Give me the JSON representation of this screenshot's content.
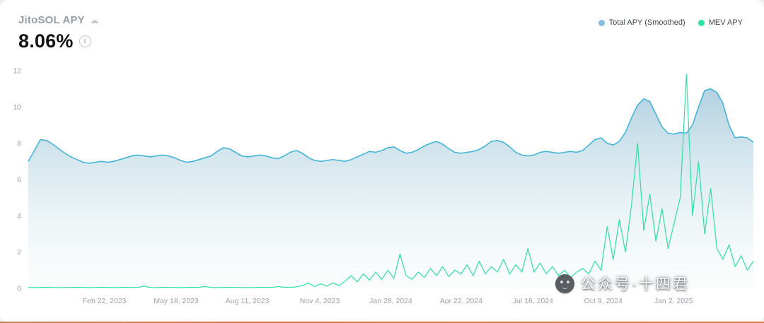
{
  "header": {
    "title": "JitoSOL APY",
    "value": "8.06%"
  },
  "legend": {
    "items": [
      {
        "label": "Total APY (Smoothed)",
        "color": "#84bde4"
      },
      {
        "label": "MEV APY",
        "color": "#2ee0a4"
      }
    ]
  },
  "watermark": {
    "text": "公众号·十四君"
  },
  "chart_data": {
    "type": "area",
    "title": "JitoSOL APY",
    "grid": false,
    "legend_position": "top-right",
    "ylim": [
      0,
      12
    ],
    "yticks": [
      0,
      2,
      4,
      6,
      8,
      10,
      12
    ],
    "xticks": [
      {
        "label": "Feb 22, 2023",
        "pos": 0.105
      },
      {
        "label": "May 18, 2023",
        "pos": 0.204
      },
      {
        "label": "Aug 11, 2023",
        "pos": 0.302
      },
      {
        "label": "Nov 4, 2023",
        "pos": 0.402
      },
      {
        "label": "Jan 28, 2024",
        "pos": 0.5
      },
      {
        "label": "Apr 22, 2024",
        "pos": 0.597
      },
      {
        "label": "Jul 16, 2024",
        "pos": 0.696
      },
      {
        "label": "Oct 9, 2024",
        "pos": 0.793
      },
      {
        "label": "Jan 2, 2025",
        "pos": 0.89
      }
    ],
    "series": [
      {
        "name": "Total APY (Smoothed)",
        "type": "area",
        "color": "#45b4d9",
        "fill_top": "#a4c9dc",
        "fill_bottom": "#f0f8f5",
        "values": [
          7.0,
          7.6,
          8.2,
          8.15,
          7.95,
          7.7,
          7.45,
          7.25,
          7.1,
          6.95,
          6.9,
          6.95,
          7.0,
          6.95,
          7.0,
          7.1,
          7.2,
          7.3,
          7.35,
          7.3,
          7.25,
          7.3,
          7.35,
          7.3,
          7.2,
          7.05,
          6.95,
          7.0,
          7.1,
          7.2,
          7.3,
          7.55,
          7.75,
          7.7,
          7.5,
          7.3,
          7.25,
          7.3,
          7.35,
          7.3,
          7.2,
          7.15,
          7.3,
          7.5,
          7.6,
          7.45,
          7.2,
          7.05,
          7.0,
          7.05,
          7.1,
          7.05,
          7.0,
          7.1,
          7.25,
          7.4,
          7.55,
          7.5,
          7.6,
          7.75,
          7.8,
          7.6,
          7.45,
          7.5,
          7.65,
          7.85,
          8.0,
          8.1,
          7.95,
          7.7,
          7.5,
          7.45,
          7.5,
          7.55,
          7.65,
          7.85,
          8.1,
          8.15,
          8.05,
          7.8,
          7.5,
          7.35,
          7.3,
          7.35,
          7.5,
          7.55,
          7.5,
          7.45,
          7.5,
          7.55,
          7.5,
          7.6,
          7.9,
          8.2,
          8.3,
          8.0,
          7.9,
          8.1,
          8.6,
          9.4,
          10.1,
          10.45,
          10.3,
          9.6,
          8.9,
          8.55,
          8.5,
          8.6,
          8.55,
          9.0,
          10.0,
          10.9,
          11.0,
          10.8,
          10.2,
          9.0,
          8.3,
          8.35,
          8.3,
          8.05
        ]
      },
      {
        "name": "MEV APY",
        "type": "line",
        "color": "#2ee0a4",
        "values": [
          0.05,
          0.04,
          0.05,
          0.06,
          0.05,
          0.04,
          0.05,
          0.05,
          0.06,
          0.05,
          0.04,
          0.05,
          0.06,
          0.05,
          0.04,
          0.05,
          0.06,
          0.05,
          0.05,
          0.12,
          0.05,
          0.04,
          0.06,
          0.05,
          0.05,
          0.04,
          0.05,
          0.06,
          0.05,
          0.1,
          0.05,
          0.04,
          0.05,
          0.06,
          0.05,
          0.05,
          0.04,
          0.05,
          0.06,
          0.05,
          0.05,
          0.1,
          0.06,
          0.05,
          0.08,
          0.15,
          0.3,
          0.1,
          0.25,
          0.12,
          0.3,
          0.15,
          0.4,
          0.7,
          0.35,
          0.8,
          0.45,
          0.9,
          0.5,
          1.0,
          0.55,
          1.9,
          0.7,
          0.5,
          0.9,
          0.6,
          1.1,
          0.7,
          1.2,
          0.65,
          1.0,
          0.8,
          1.3,
          0.7,
          1.5,
          0.8,
          1.2,
          0.9,
          1.6,
          0.8,
          1.3,
          0.9,
          2.2,
          0.9,
          1.4,
          0.8,
          1.2,
          0.7,
          1.0,
          0.6,
          0.9,
          1.1,
          0.8,
          1.5,
          1.0,
          3.4,
          1.6,
          3.8,
          2.0,
          4.6,
          8.0,
          3.2,
          5.2,
          2.6,
          4.4,
          2.2,
          3.6,
          5.0,
          11.8,
          4.0,
          7.0,
          3.0,
          5.5,
          2.2,
          1.6,
          2.4,
          1.2,
          1.8,
          1.0,
          1.5
        ]
      }
    ]
  }
}
